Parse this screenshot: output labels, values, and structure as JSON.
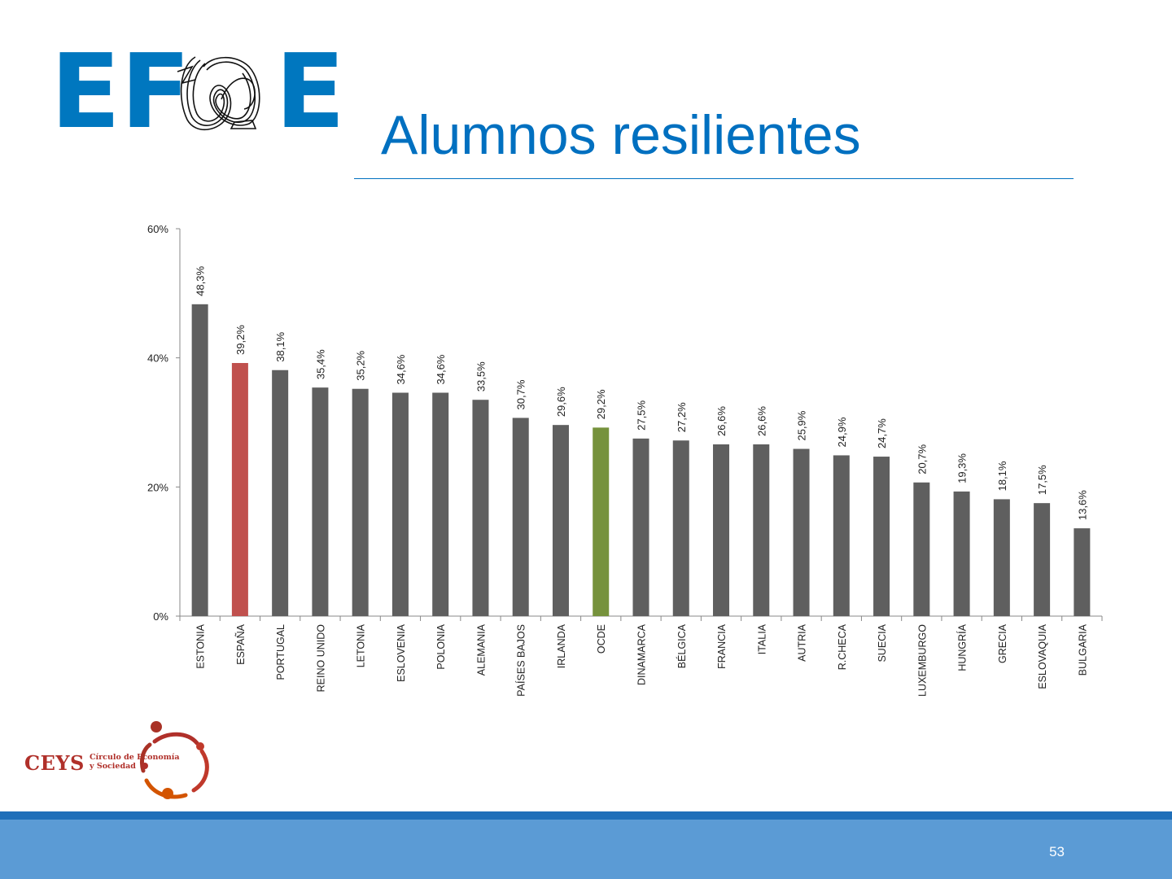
{
  "header": {
    "logo_text_left": "EF",
    "logo_text_right": "E",
    "title": "Alumnos resilientes"
  },
  "colors": {
    "accent_blue": "#0070C0",
    "default_bar": "#5F5F5F",
    "highlight_spain": "#C0504D",
    "highlight_oecd": "#76923C"
  },
  "chart_data": {
    "type": "bar",
    "categories": [
      "ESTONIA",
      "ESPAÑA",
      "PORTUGAL",
      "REINO UNIDO",
      "LETONIA",
      "ESLOVENIA",
      "POLONIA",
      "ALEMANIA",
      "PAÍSES BAJOS",
      "IRLANDA",
      "OCDE",
      "DINAMARCA",
      "BÉLGICA",
      "FRANCIA",
      "ITALIA",
      "AUTRIA",
      "R.CHECA",
      "SUECIA",
      "LUXEMBURGO",
      "HUNGRÍA",
      "GRECIA",
      "ESLOVAQUIA",
      "BULGARIA"
    ],
    "values": [
      48.3,
      39.2,
      38.1,
      35.4,
      35.2,
      34.6,
      34.6,
      33.5,
      30.7,
      29.6,
      29.2,
      27.5,
      27.2,
      26.6,
      26.6,
      25.9,
      24.9,
      24.7,
      20.7,
      19.3,
      18.1,
      17.5,
      13.6
    ],
    "data_labels": [
      "48,3%",
      "39,2%",
      "38,1%",
      "35,4%",
      "35,2%",
      "34,6%",
      "34,6%",
      "33,5%",
      "30,7%",
      "29,6%",
      "29,2%",
      "27,5%",
      "27,2%",
      "26,6%",
      "26,6%",
      "25,9%",
      "24,9%",
      "24,7%",
      "20,7%",
      "19,3%",
      "18,1%",
      "17,5%",
      "13,6%"
    ],
    "highlight": {
      "ESPAÑA": "#C0504D",
      "OCDE": "#76923C"
    },
    "ylim": [
      0,
      60
    ],
    "yticks": [
      0,
      20,
      40,
      60
    ],
    "ytick_labels": [
      "0%",
      "20%",
      "40%",
      "60%"
    ],
    "title": "",
    "xlabel": "",
    "ylabel": "",
    "grid": false,
    "legend": "none"
  },
  "ceys": {
    "name": "CEYS",
    "subtitle_line1": "Círculo de Economía",
    "subtitle_line2": "y Sociedad"
  },
  "footer": {
    "page_number": "53"
  }
}
